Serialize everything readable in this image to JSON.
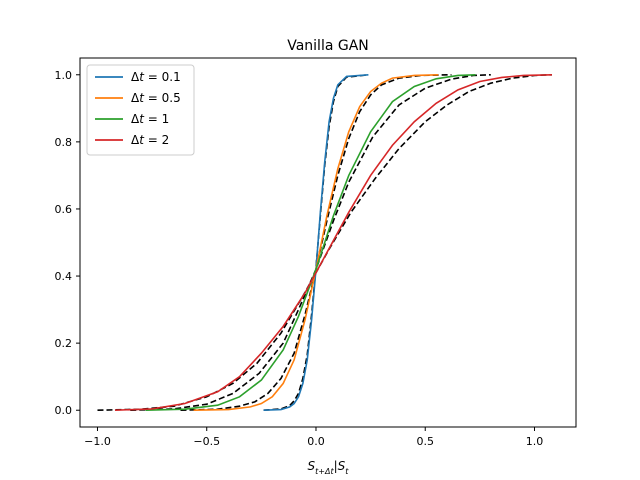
{
  "chart_data": {
    "type": "line",
    "title": "Vanilla GAN",
    "xlabel": "S_{t+Δt}|S_t",
    "ylabel": "",
    "xlim": [
      -1.08,
      1.19
    ],
    "ylim": [
      -0.05,
      1.05
    ],
    "xticks": [
      -1.0,
      -0.5,
      0.0,
      0.5,
      1.0
    ],
    "xtick_labels": [
      "−1.0",
      "−0.5",
      "0.0",
      "0.5",
      "1.0"
    ],
    "yticks": [
      0.0,
      0.2,
      0.4,
      0.6,
      0.8,
      1.0
    ],
    "ytick_labels": [
      "0.0",
      "0.2",
      "0.4",
      "0.6",
      "0.8",
      "1.0"
    ],
    "grid": false,
    "legend_position": "top-left",
    "reference_style": "black dashed",
    "series": [
      {
        "name": "Δt = 0.1",
        "dt": "0.1",
        "color": "#1f77b4",
        "x": [
          -0.24,
          -0.16,
          -0.12,
          -0.1,
          -0.08,
          -0.06,
          -0.04,
          -0.02,
          0.0,
          0.02,
          0.04,
          0.06,
          0.08,
          0.1,
          0.14,
          0.24
        ],
        "y": [
          0.0,
          0.002,
          0.01,
          0.02,
          0.04,
          0.08,
          0.15,
          0.27,
          0.42,
          0.59,
          0.74,
          0.86,
          0.93,
          0.97,
          0.995,
          1.0
        ],
        "ref_x": [
          -0.24,
          -0.16,
          -0.12,
          -0.1,
          -0.08,
          -0.06,
          -0.04,
          -0.02,
          0.0,
          0.02,
          0.04,
          0.06,
          0.08,
          0.1,
          0.14,
          0.24
        ],
        "ref_y": [
          0.0,
          0.004,
          0.014,
          0.028,
          0.05,
          0.095,
          0.165,
          0.285,
          0.425,
          0.58,
          0.73,
          0.845,
          0.92,
          0.965,
          0.993,
          1.0
        ]
      },
      {
        "name": "Δt = 0.5",
        "dt": "0.5",
        "color": "#ff7f0e",
        "x": [
          -0.56,
          -0.4,
          -0.3,
          -0.25,
          -0.2,
          -0.15,
          -0.1,
          -0.05,
          0.0,
          0.05,
          0.1,
          0.15,
          0.2,
          0.25,
          0.3,
          0.35,
          0.45,
          0.56
        ],
        "y": [
          0.0,
          0.002,
          0.01,
          0.02,
          0.04,
          0.08,
          0.15,
          0.27,
          0.42,
          0.58,
          0.72,
          0.83,
          0.905,
          0.95,
          0.975,
          0.99,
          0.998,
          1.0
        ],
        "ref_x": [
          -0.62,
          -0.45,
          -0.35,
          -0.28,
          -0.22,
          -0.16,
          -0.1,
          -0.05,
          0.0,
          0.05,
          0.1,
          0.15,
          0.2,
          0.25,
          0.3,
          0.38,
          0.48,
          0.62
        ],
        "ref_y": [
          0.0,
          0.003,
          0.012,
          0.025,
          0.05,
          0.095,
          0.17,
          0.285,
          0.42,
          0.565,
          0.7,
          0.81,
          0.89,
          0.94,
          0.97,
          0.99,
          0.998,
          1.0
        ]
      },
      {
        "name": "Δt = 1",
        "dt": "1",
        "color": "#2ca02c",
        "x": [
          -0.78,
          -0.6,
          -0.45,
          -0.35,
          -0.25,
          -0.15,
          -0.08,
          0.0,
          0.08,
          0.15,
          0.25,
          0.35,
          0.45,
          0.55,
          0.65,
          0.73
        ],
        "y": [
          0.0,
          0.003,
          0.015,
          0.04,
          0.09,
          0.18,
          0.28,
          0.42,
          0.58,
          0.7,
          0.83,
          0.92,
          0.965,
          0.988,
          0.998,
          1.0
        ],
        "ref_x": [
          -0.85,
          -0.65,
          -0.5,
          -0.38,
          -0.26,
          -0.15,
          -0.08,
          0.0,
          0.08,
          0.15,
          0.26,
          0.38,
          0.5,
          0.62,
          0.72,
          0.8
        ],
        "ref_y": [
          0.0,
          0.004,
          0.018,
          0.05,
          0.11,
          0.2,
          0.3,
          0.42,
          0.565,
          0.68,
          0.815,
          0.91,
          0.96,
          0.987,
          0.998,
          1.0
        ]
      },
      {
        "name": "Δt = 2",
        "dt": "2",
        "color": "#d62728",
        "x": [
          -0.92,
          -0.75,
          -0.6,
          -0.45,
          -0.35,
          -0.25,
          -0.15,
          -0.05,
          0.0,
          0.05,
          0.15,
          0.25,
          0.35,
          0.45,
          0.55,
          0.65,
          0.75,
          0.85,
          0.95,
          1.08
        ],
        "y": [
          0.0,
          0.004,
          0.02,
          0.055,
          0.1,
          0.17,
          0.25,
          0.35,
          0.41,
          0.47,
          0.59,
          0.7,
          0.79,
          0.86,
          0.915,
          0.955,
          0.98,
          0.992,
          0.998,
          1.0
        ],
        "ref_x": [
          -1.0,
          -0.8,
          -0.65,
          -0.5,
          -0.38,
          -0.27,
          -0.16,
          -0.06,
          0.0,
          0.06,
          0.16,
          0.27,
          0.38,
          0.5,
          0.6,
          0.7,
          0.8,
          0.9,
          1.0,
          1.08
        ],
        "ref_y": [
          0.0,
          0.003,
          0.012,
          0.04,
          0.08,
          0.14,
          0.23,
          0.34,
          0.41,
          0.48,
          0.59,
          0.69,
          0.78,
          0.86,
          0.91,
          0.95,
          0.975,
          0.99,
          0.998,
          1.0
        ]
      }
    ]
  }
}
